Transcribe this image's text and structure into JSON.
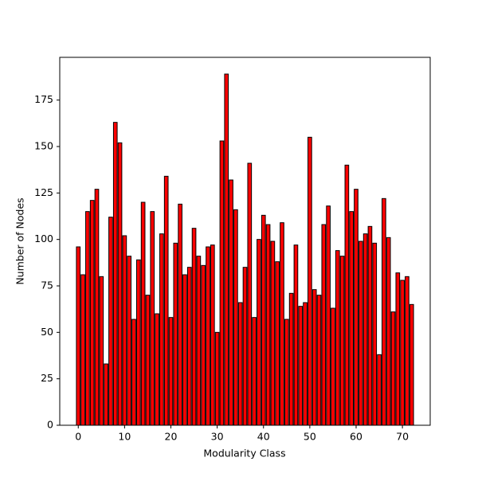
{
  "chart_data": {
    "type": "bar",
    "xlabel": "Modularity Class",
    "ylabel": "Number of Nodes",
    "x": [
      0,
      1,
      2,
      3,
      4,
      5,
      6,
      7,
      8,
      9,
      10,
      11,
      12,
      13,
      14,
      15,
      16,
      17,
      18,
      19,
      20,
      21,
      22,
      23,
      24,
      25,
      26,
      27,
      28,
      29,
      30,
      31,
      32,
      33,
      34,
      35,
      36,
      37,
      38,
      39,
      40,
      41,
      42,
      43,
      44,
      45,
      46,
      47,
      48,
      49,
      50,
      51,
      52,
      53,
      54,
      55,
      56,
      57,
      58,
      59,
      60,
      61,
      62,
      63,
      64,
      65,
      66,
      67,
      68,
      69,
      70,
      71,
      72
    ],
    "values": [
      96,
      81,
      115,
      121,
      127,
      80,
      33,
      112,
      163,
      152,
      102,
      91,
      57,
      89,
      120,
      70,
      115,
      60,
      103,
      134,
      58,
      98,
      119,
      81,
      85,
      106,
      91,
      86,
      96,
      97,
      50,
      153,
      189,
      132,
      116,
      66,
      85,
      141,
      58,
      100,
      113,
      108,
      99,
      88,
      109,
      57,
      71,
      97,
      64,
      66,
      155,
      73,
      70,
      108,
      118,
      63,
      94,
      91,
      140,
      115,
      127,
      99,
      103,
      107,
      98,
      38,
      122,
      101,
      61,
      82,
      78,
      80,
      65
    ],
    "color": "#ff0000",
    "edgecolor": "#000000",
    "xlim": [
      -4,
      76
    ],
    "xticks": [
      0,
      10,
      20,
      30,
      40,
      50,
      60,
      70
    ],
    "ylim": [
      0,
      198
    ],
    "yticks": [
      0,
      25,
      50,
      75,
      100,
      125,
      150,
      175
    ],
    "grid": false
  }
}
